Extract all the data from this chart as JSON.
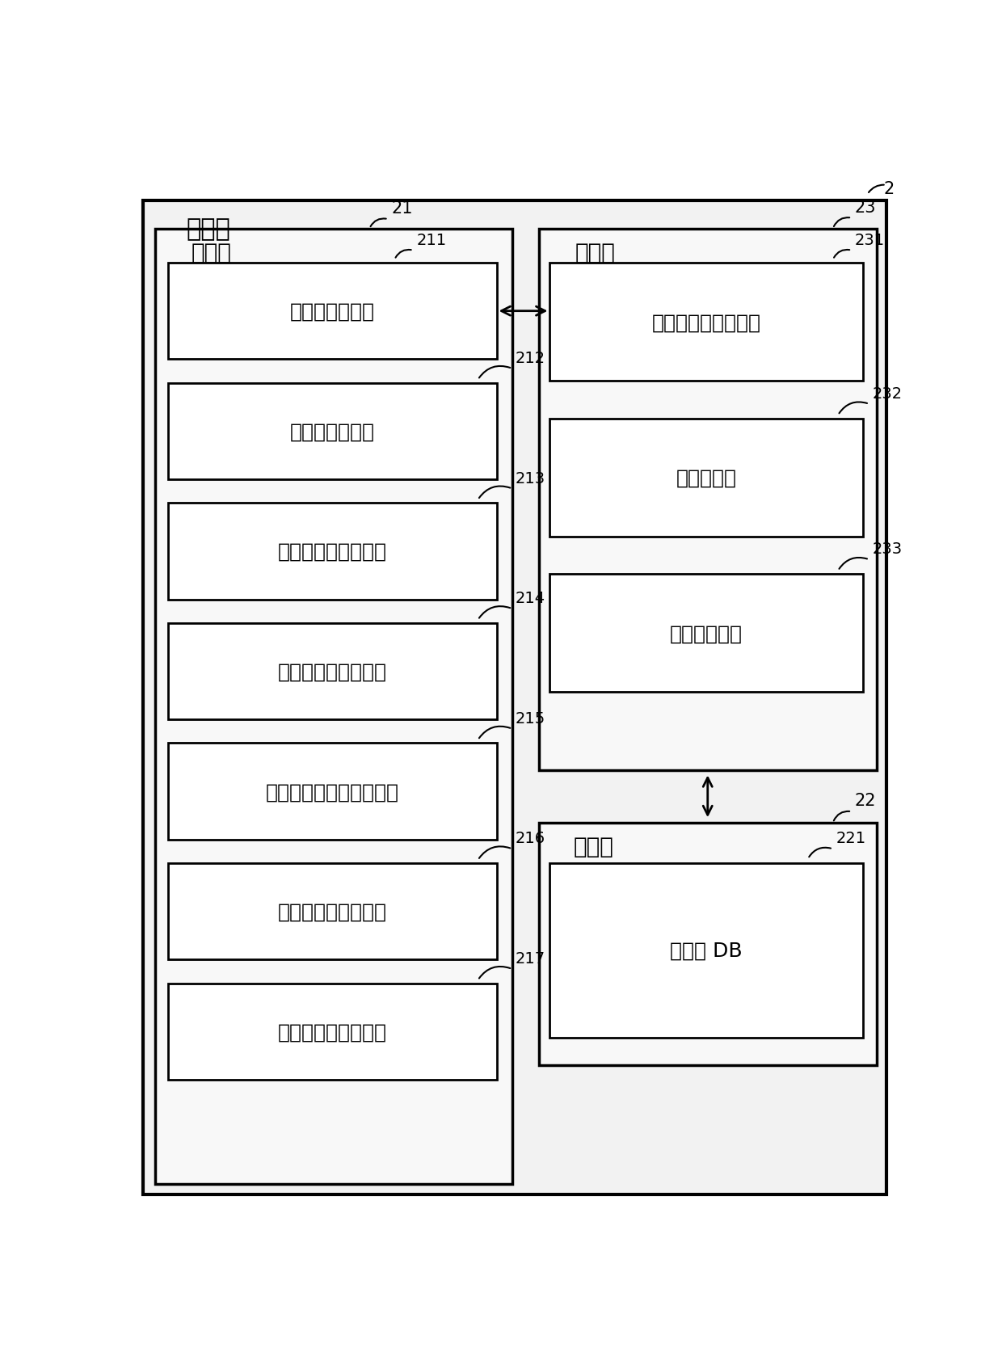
{
  "bg_color": "#ffffff",
  "outer_label": "服务器",
  "left_panel_label": "通信部",
  "right_panel1_label": "控制部",
  "right_panel2_label": "存储部",
  "id_outer_right": "2",
  "id_left_panel": "21",
  "id_left_inner": "211",
  "id_right_panel1": "23",
  "id_right_panel2": "22",
  "left_boxes": [
    {
      "label": "生体信息接收部",
      "id": "211"
    },
    {
      "label": "紧急信号发送部",
      "id": "212"
    },
    {
      "label": "可以出场信号接收部",
      "id": "213"
    },
    {
      "label": "决定通知信号发送部",
      "id": "214"
    },
    {
      "label": "密码发行委托信号发送部",
      "id": "215"
    },
    {
      "label": "到达通知信号接收部",
      "id": "216"
    },
    {
      "label": "联系方式信息发送部",
      "id": "217"
    }
  ],
  "right_boxes1": [
    {
      "label": "安全与否确认判断部",
      "id": "231"
    },
    {
      "label": "紧急通报部",
      "id": "232"
    },
    {
      "label": "出场人决定部",
      "id": "233"
    }
  ],
  "right_box2_label": "登记人 DB",
  "right_box2_id": "221"
}
